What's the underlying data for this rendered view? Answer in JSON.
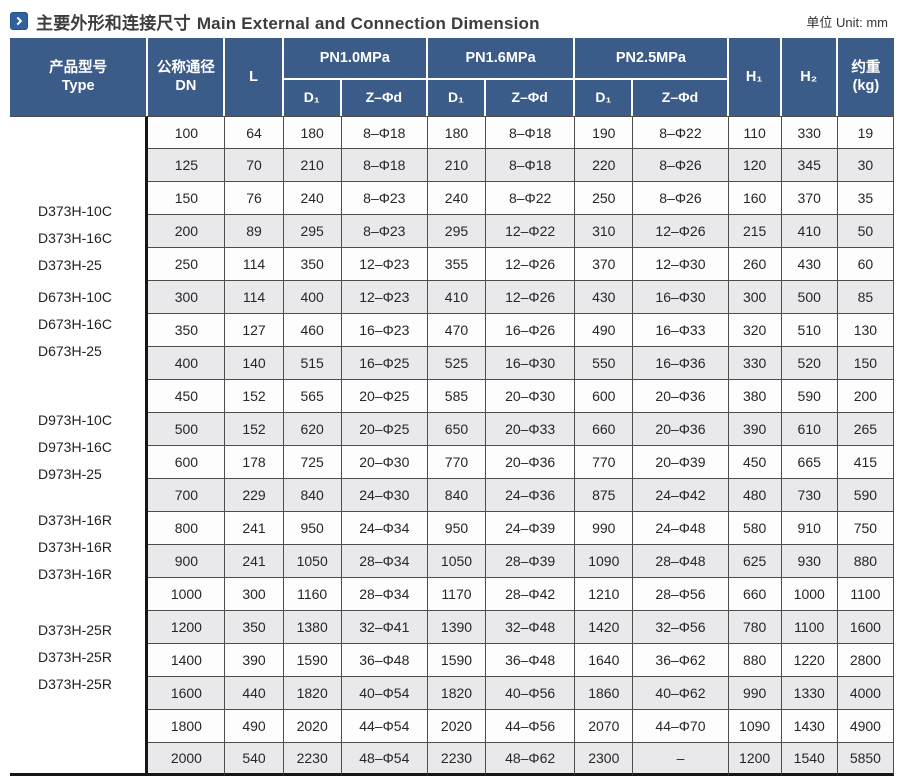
{
  "title": {
    "zh": "主要外形和连接尺寸",
    "en": "Main External and Connection Dimension"
  },
  "unit_label": "单位 Unit: mm",
  "colors": {
    "header_blue": "#3b5b88",
    "stripe_gray": "#e9e9eb",
    "icon_blue": "#30609f",
    "grid_line": "#4d4d4d",
    "thick_line": "#161616"
  },
  "icons": {
    "title_icon": "chevron-right-icon"
  },
  "table": {
    "headers": {
      "type_zh": "产品型号",
      "type_en": "Type",
      "dn_zh": "公称通径",
      "dn_en": "DN",
      "l": "L",
      "pn_groups": [
        {
          "label": "PN1.0MPa",
          "d1": "D₁",
          "z": "Z–Φd"
        },
        {
          "label": "PN1.6MPa",
          "d1": "D₁",
          "z": "Z–Φd"
        },
        {
          "label": "PN2.5MPa",
          "d1": "D₁",
          "z": "Z–Φd"
        }
      ],
      "h1": "H₁",
      "h2": "H₂",
      "weight_zh": "约重",
      "weight_unit": "(kg)"
    },
    "type_groups": [
      {
        "labels": [
          "D373H-10C",
          "D373H-16C",
          "D373H-25"
        ]
      },
      {
        "labels": [
          "D673H-10C",
          "D673H-16C",
          "D673H-25"
        ]
      },
      {
        "labels": [
          "D973H-10C",
          "D973H-16C",
          "D973H-25"
        ]
      },
      {
        "labels": [
          "D373H-16R",
          "D373H-16R",
          "D373H-16R"
        ]
      },
      {
        "labels": [
          "D373H-25R",
          "D373H-25R",
          "D373H-25R"
        ]
      }
    ],
    "rows": [
      [
        "100",
        "64",
        "180",
        "8–Φ18",
        "180",
        "8–Φ18",
        "190",
        "8–Φ22",
        "110",
        "330",
        "19"
      ],
      [
        "125",
        "70",
        "210",
        "8–Φ18",
        "210",
        "8–Φ18",
        "220",
        "8–Φ26",
        "120",
        "345",
        "30"
      ],
      [
        "150",
        "76",
        "240",
        "8–Φ23",
        "240",
        "8–Φ22",
        "250",
        "8–Φ26",
        "160",
        "370",
        "35"
      ],
      [
        "200",
        "89",
        "295",
        "8–Φ23",
        "295",
        "12–Φ22",
        "310",
        "12–Φ26",
        "215",
        "410",
        "50"
      ],
      [
        "250",
        "114",
        "350",
        "12–Φ23",
        "355",
        "12–Φ26",
        "370",
        "12–Φ30",
        "260",
        "430",
        "60"
      ],
      [
        "300",
        "114",
        "400",
        "12–Φ23",
        "410",
        "12–Φ26",
        "430",
        "16–Φ30",
        "300",
        "500",
        "85"
      ],
      [
        "350",
        "127",
        "460",
        "16–Φ23",
        "470",
        "16–Φ26",
        "490",
        "16–Φ33",
        "320",
        "510",
        "130"
      ],
      [
        "400",
        "140",
        "515",
        "16–Φ25",
        "525",
        "16–Φ30",
        "550",
        "16–Φ36",
        "330",
        "520",
        "150"
      ],
      [
        "450",
        "152",
        "565",
        "20–Φ25",
        "585",
        "20–Φ30",
        "600",
        "20–Φ36",
        "380",
        "590",
        "200"
      ],
      [
        "500",
        "152",
        "620",
        "20–Φ25",
        "650",
        "20–Φ33",
        "660",
        "20–Φ36",
        "390",
        "610",
        "265"
      ],
      [
        "600",
        "178",
        "725",
        "20–Φ30",
        "770",
        "20–Φ36",
        "770",
        "20–Φ39",
        "450",
        "665",
        "415"
      ],
      [
        "700",
        "229",
        "840",
        "24–Φ30",
        "840",
        "24–Φ36",
        "875",
        "24–Φ42",
        "480",
        "730",
        "590"
      ],
      [
        "800",
        "241",
        "950",
        "24–Φ34",
        "950",
        "24–Φ39",
        "990",
        "24–Φ48",
        "580",
        "910",
        "750"
      ],
      [
        "900",
        "241",
        "1050",
        "28–Φ34",
        "1050",
        "28–Φ39",
        "1090",
        "28–Φ48",
        "625",
        "930",
        "880"
      ],
      [
        "1000",
        "300",
        "1160",
        "28–Φ34",
        "1170",
        "28–Φ42",
        "1210",
        "28–Φ56",
        "660",
        "1000",
        "1100"
      ],
      [
        "1200",
        "350",
        "1380",
        "32–Φ41",
        "1390",
        "32–Φ48",
        "1420",
        "32–Φ56",
        "780",
        "1100",
        "1600"
      ],
      [
        "1400",
        "390",
        "1590",
        "36–Φ48",
        "1590",
        "36–Φ48",
        "1640",
        "36–Φ62",
        "880",
        "1220",
        "2800"
      ],
      [
        "1600",
        "440",
        "1820",
        "40–Φ54",
        "1820",
        "40–Φ56",
        "1860",
        "40–Φ62",
        "990",
        "1330",
        "4000"
      ],
      [
        "1800",
        "490",
        "2020",
        "44–Φ54",
        "2020",
        "44–Φ56",
        "2070",
        "44–Φ70",
        "1090",
        "1430",
        "4900"
      ],
      [
        "2000",
        "540",
        "2230",
        "48–Φ54",
        "2230",
        "48–Φ62",
        "2300",
        "–",
        "1200",
        "1540",
        "5850"
      ]
    ]
  }
}
